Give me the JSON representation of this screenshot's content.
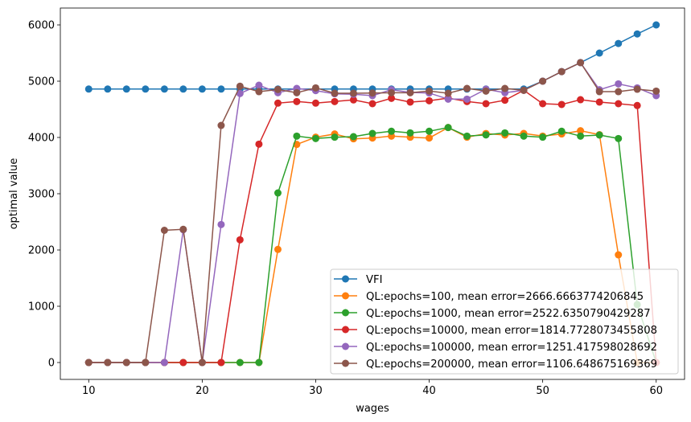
{
  "chart_data": {
    "type": "line",
    "title": "",
    "xlabel": "wages",
    "ylabel": "optimal value",
    "xlim": [
      7.5,
      62.5
    ],
    "ylim": [
      -300,
      6300
    ],
    "xticks": [
      10,
      20,
      30,
      40,
      50,
      60
    ],
    "yticks": [
      0,
      1000,
      2000,
      3000,
      4000,
      5000,
      6000
    ],
    "grid": false,
    "legend_position": "lower-right",
    "x": [
      10,
      11.67,
      13.33,
      15,
      16.67,
      18.33,
      20,
      21.67,
      23.33,
      25,
      26.67,
      28.33,
      30,
      31.67,
      33.33,
      35,
      36.67,
      38.33,
      40,
      41.67,
      43.33,
      45,
      46.67,
      48.33,
      50,
      51.67,
      53.33,
      55,
      56.67,
      58.33,
      60
    ],
    "series": [
      {
        "name": "VFI",
        "color": "#1f77b4",
        "values": [
          4860,
          4860,
          4860,
          4860,
          4860,
          4860,
          4860,
          4860,
          4860,
          4860,
          4860,
          4860,
          4860,
          4860,
          4860,
          4860,
          4860,
          4860,
          4860,
          4860,
          4860,
          4860,
          4860,
          4860,
          5000,
          5170,
          5330,
          5500,
          5670,
          5840,
          6000
        ]
      },
      {
        "name": "QL:epochs=100, mean error=2666.6663774206845",
        "color": "#ff7f0e",
        "values": [
          0,
          0,
          0,
          0,
          0,
          0,
          0,
          0,
          0,
          0,
          2010,
          3876,
          4005,
          4062,
          3976,
          3990,
          4024,
          4005,
          3990,
          4176,
          4005,
          4070,
          4043,
          4071,
          4024,
          4062,
          4119,
          4050,
          1914,
          0,
          0
        ]
      },
      {
        "name": "QL:epochs=1000, mean error=2522.6350790429287",
        "color": "#2ca02c",
        "values": [
          0,
          0,
          0,
          0,
          0,
          0,
          0,
          0,
          0,
          0,
          3014,
          4024,
          3981,
          4005,
          4014,
          4071,
          4110,
          4081,
          4110,
          4176,
          4024,
          4045,
          4081,
          4024,
          4005,
          4110,
          4024,
          4043,
          3981,
          1030,
          0
        ]
      },
      {
        "name": "QL:epochs=10000, mean error=1814.7728073455808",
        "color": "#d62728",
        "values": [
          0,
          0,
          0,
          0,
          0,
          0,
          0,
          0,
          2181,
          3881,
          4610,
          4638,
          4610,
          4638,
          4667,
          4600,
          4695,
          4629,
          4652,
          4700,
          4638,
          4600,
          4662,
          4838,
          4600,
          4586,
          4671,
          4629,
          4600,
          4567,
          0
        ]
      },
      {
        "name": "QL:epochs=100000, mean error=1251.417598028692",
        "color": "#9467bd",
        "values": [
          0,
          0,
          0,
          0,
          0,
          2360,
          0,
          2452,
          4781,
          4928,
          4795,
          4871,
          4833,
          4776,
          4767,
          4743,
          4848,
          4800,
          4790,
          4681,
          4681,
          4857,
          4795,
          4838,
          5000,
          5170,
          5330,
          4848,
          4952,
          4881,
          4743
        ]
      },
      {
        "name": "QL:epochs=200000, mean error=1106.648675169369",
        "color": "#8c564b",
        "values": [
          0,
          0,
          0,
          0,
          2350,
          2367,
          0,
          4214,
          4910,
          4814,
          4852,
          4795,
          4881,
          4786,
          4786,
          4790,
          4795,
          4795,
          4824,
          4786,
          4871,
          4824,
          4871,
          4838,
          5000,
          5170,
          5330,
          4814,
          4814,
          4857,
          4824
        ]
      }
    ]
  }
}
